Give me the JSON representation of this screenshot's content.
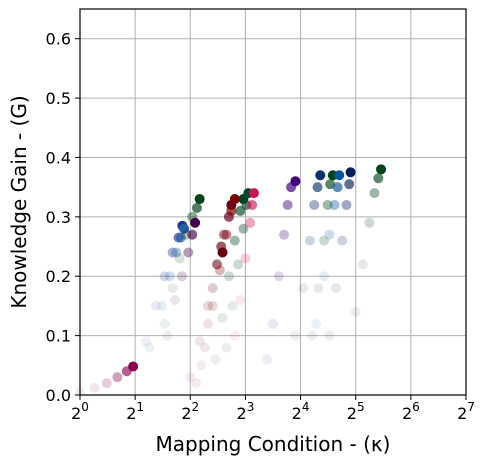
{
  "chart_data": {
    "type": "scatter",
    "xlabel": "Mapping Condition - (κ)",
    "ylabel": "Knowledge Gain - (G)",
    "x_scale": "log2",
    "xlim": [
      1,
      128
    ],
    "ylim": [
      0,
      0.65
    ],
    "x_ticks": [
      1,
      2,
      4,
      8,
      16,
      32,
      64,
      128
    ],
    "x_tick_labels": [
      "0",
      "1",
      "2",
      "3",
      "4",
      "5",
      "6",
      "7"
    ],
    "y_ticks": [
      0,
      0.1,
      0.2,
      0.3,
      0.4,
      0.5,
      0.6
    ],
    "y_tick_labels": [
      "0.0",
      "0.1",
      "0.2",
      "0.3",
      "0.4",
      "0.5",
      "0.6"
    ],
    "grid": true,
    "series": [
      {
        "color": "#8e0152",
        "values": [
          [
            1.0,
            0.005
          ],
          [
            1.2,
            0.012
          ],
          [
            1.4,
            0.02
          ],
          [
            1.6,
            0.03
          ],
          [
            1.8,
            0.04
          ],
          [
            1.95,
            0.048
          ]
        ]
      },
      {
        "color": "#253494",
        "values": [
          [
            2.3,
            0.09
          ],
          [
            2.6,
            0.15
          ],
          [
            2.9,
            0.2
          ],
          [
            3.2,
            0.24
          ],
          [
            3.45,
            0.265
          ],
          [
            3.62,
            0.285
          ]
        ]
      },
      {
        "color": "#225ea8",
        "values": [
          [
            2.4,
            0.08
          ],
          [
            2.8,
            0.15
          ],
          [
            3.1,
            0.2
          ],
          [
            3.35,
            0.24
          ],
          [
            3.55,
            0.265
          ],
          [
            3.7,
            0.28
          ]
        ]
      },
      {
        "color": "#00441b",
        "values": [
          [
            2.9,
            0.12
          ],
          [
            3.2,
            0.18
          ],
          [
            3.5,
            0.23
          ],
          [
            3.8,
            0.27
          ],
          [
            4.1,
            0.3
          ],
          [
            4.35,
            0.315
          ],
          [
            4.5,
            0.33
          ]
        ]
      },
      {
        "color": "#40004b",
        "values": [
          [
            3.0,
            0.1
          ],
          [
            3.3,
            0.16
          ],
          [
            3.6,
            0.2
          ],
          [
            3.9,
            0.24
          ],
          [
            4.1,
            0.27
          ],
          [
            4.25,
            0.29
          ]
        ]
      },
      {
        "color": "#67000d",
        "values": [
          [
            4.6,
            0.05
          ],
          [
            5.0,
            0.12
          ],
          [
            5.3,
            0.18
          ],
          [
            5.6,
            0.22
          ],
          [
            5.9,
            0.25
          ],
          [
            6.0,
            0.24
          ]
        ]
      },
      {
        "color": "#67001f",
        "values": [
          [
            4.0,
            0.03
          ],
          [
            4.5,
            0.09
          ],
          [
            5.0,
            0.15
          ],
          [
            5.6,
            0.22
          ],
          [
            6.1,
            0.27
          ],
          [
            6.5,
            0.3
          ],
          [
            6.7,
            0.32
          ]
        ]
      },
      {
        "color": "#7f0000",
        "values": [
          [
            4.3,
            0.02
          ],
          [
            4.8,
            0.08
          ],
          [
            5.3,
            0.15
          ],
          [
            5.8,
            0.21
          ],
          [
            6.3,
            0.27
          ],
          [
            6.7,
            0.31
          ],
          [
            7.0,
            0.33
          ]
        ]
      },
      {
        "color": "#00441b",
        "values": [
          [
            5.5,
            0.06
          ],
          [
            6.0,
            0.13
          ],
          [
            6.5,
            0.2
          ],
          [
            7.0,
            0.26
          ],
          [
            7.5,
            0.31
          ],
          [
            7.8,
            0.33
          ]
        ]
      },
      {
        "color": "#004529",
        "values": [
          [
            6.3,
            0.08
          ],
          [
            6.8,
            0.15
          ],
          [
            7.3,
            0.22
          ],
          [
            7.8,
            0.28
          ],
          [
            8.1,
            0.32
          ],
          [
            8.3,
            0.34
          ]
        ]
      },
      {
        "color": "#ce1256",
        "values": [
          [
            7.0,
            0.1
          ],
          [
            7.5,
            0.16
          ],
          [
            8.0,
            0.23
          ],
          [
            8.5,
            0.29
          ],
          [
            8.7,
            0.32
          ],
          [
            8.9,
            0.34
          ]
        ]
      },
      {
        "color": "#3f007d",
        "values": [
          [
            10.5,
            0.06
          ],
          [
            11.3,
            0.12
          ],
          [
            12.2,
            0.2
          ],
          [
            13.0,
            0.27
          ],
          [
            13.6,
            0.32
          ],
          [
            14.2,
            0.35
          ],
          [
            15.0,
            0.36
          ]
        ]
      },
      {
        "color": "#08306b",
        "values": [
          [
            15.0,
            0.1
          ],
          [
            16.5,
            0.18
          ],
          [
            18.0,
            0.26
          ],
          [
            19.0,
            0.32
          ],
          [
            19.8,
            0.35
          ],
          [
            20.5,
            0.37
          ]
        ]
      },
      {
        "color": "#00441b",
        "values": [
          [
            18.5,
            0.1
          ],
          [
            20.0,
            0.18
          ],
          [
            21.5,
            0.26
          ],
          [
            22.5,
            0.32
          ],
          [
            23.2,
            0.355
          ],
          [
            24.0,
            0.37
          ]
        ]
      },
      {
        "color": "#08519c",
        "values": [
          [
            19.5,
            0.12
          ],
          [
            21.5,
            0.2
          ],
          [
            23.0,
            0.27
          ],
          [
            24.5,
            0.32
          ],
          [
            25.5,
            0.35
          ],
          [
            26.0,
            0.37
          ]
        ]
      },
      {
        "color": "#081d58",
        "values": [
          [
            23.0,
            0.1
          ],
          [
            25.0,
            0.18
          ],
          [
            27.0,
            0.26
          ],
          [
            28.5,
            0.32
          ],
          [
            29.5,
            0.355
          ],
          [
            30.0,
            0.375
          ]
        ]
      },
      {
        "color": "#00441b",
        "values": [
          [
            32.0,
            0.14
          ],
          [
            35.0,
            0.22
          ],
          [
            38.0,
            0.29
          ],
          [
            40.5,
            0.34
          ],
          [
            42.5,
            0.365
          ],
          [
            44.0,
            0.38
          ]
        ]
      }
    ]
  }
}
